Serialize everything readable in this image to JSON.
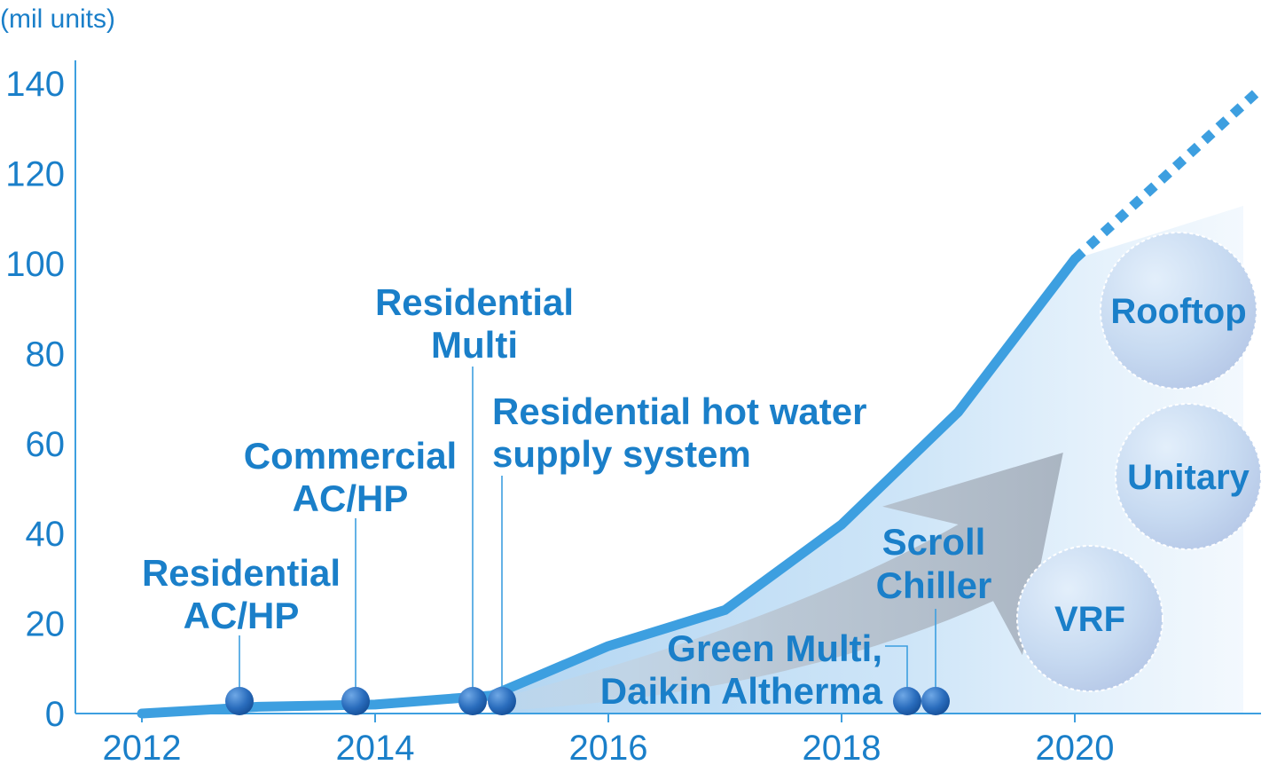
{
  "chart_data": {
    "type": "line",
    "unit_label": "(mil units)",
    "xlabel": "",
    "ylabel": "",
    "ylim": [
      0,
      140
    ],
    "y_ticks": [
      "0",
      "20",
      "40",
      "60",
      "80",
      "100",
      "120",
      "140"
    ],
    "x_ticks": [
      "2012",
      "2014",
      "2016",
      "2018",
      "2020"
    ],
    "grid": false,
    "series": [
      {
        "x": [
          2012,
          2013,
          2014,
          2015,
          2016,
          2017,
          2018,
          2019,
          2020
        ],
        "y": [
          0,
          1.5,
          2,
          4,
          15,
          23,
          42,
          67,
          101
        ],
        "style": "solid",
        "color": "#3d9fe0"
      },
      {
        "x": [
          2020,
          2021.6
        ],
        "y": [
          101,
          139
        ],
        "style": "dotted",
        "color": "#3d9fe0"
      }
    ],
    "events": [
      {
        "lines": [
          "Residential",
          "AC/HP"
        ],
        "x": 2012.85,
        "y": 3
      },
      {
        "lines": [
          "Commercial",
          "AC/HP"
        ],
        "x": 2013.85,
        "y": 3
      },
      {
        "lines": [
          "Residential",
          "Multi"
        ],
        "x": 2014.85,
        "y": 3
      },
      {
        "lines": [
          "Residential hot water",
          "supply system"
        ],
        "x": 2015.1,
        "y": 3
      },
      {
        "lines": [
          "Green Multi,",
          "Daikin Altherma"
        ],
        "x": 2018.6,
        "y": 3
      },
      {
        "lines": [
          "Scroll",
          "Chiller"
        ],
        "x": 2018.8,
        "y": 3
      }
    ],
    "categories_bubbles": [
      "Rooftop",
      "Unitary",
      "VRF"
    ],
    "colors": {
      "accent": "#1a7fc9",
      "line": "#3d9fe0",
      "marker": "#1f5fae",
      "arrow": "#b3bfcc",
      "bubble": "#c9d8ef"
    }
  }
}
